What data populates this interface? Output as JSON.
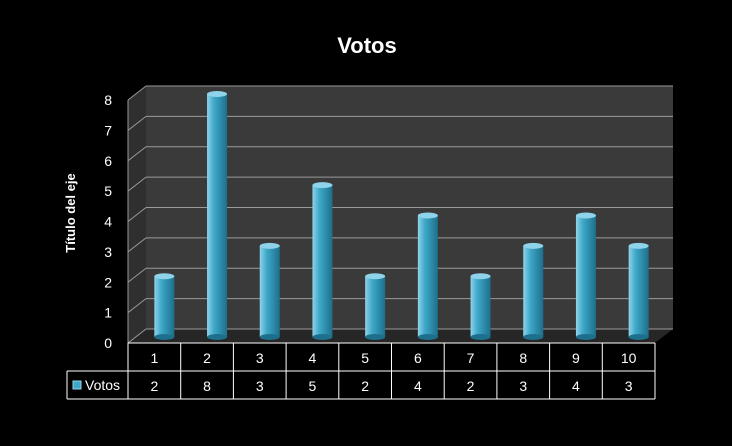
{
  "chart_data": {
    "type": "bar",
    "title": "Votos",
    "ylabel": "Título del eje",
    "xlabel": "",
    "categories": [
      "1",
      "2",
      "3",
      "4",
      "5",
      "6",
      "7",
      "8",
      "9",
      "10"
    ],
    "series": [
      {
        "name": "Votos",
        "values": [
          2,
          8,
          3,
          5,
          2,
          4,
          2,
          3,
          4,
          3
        ]
      }
    ],
    "ylim": [
      0,
      8
    ],
    "yticks": [
      "0",
      "1",
      "2",
      "3",
      "4",
      "5",
      "6",
      "7",
      "8"
    ],
    "grid": true,
    "legend": "data-table-left",
    "data_table": true,
    "colors": {
      "background": "#000000",
      "plot_wall": "#3a3a3a",
      "floor": "#262626",
      "gridline": "#9a9a9a",
      "bar_light": "#8fd3ea",
      "bar_mid": "#3ea8c9",
      "bar_dark": "#1d6f8b",
      "text": "#ffffff",
      "table_border": "#ffffff"
    }
  }
}
